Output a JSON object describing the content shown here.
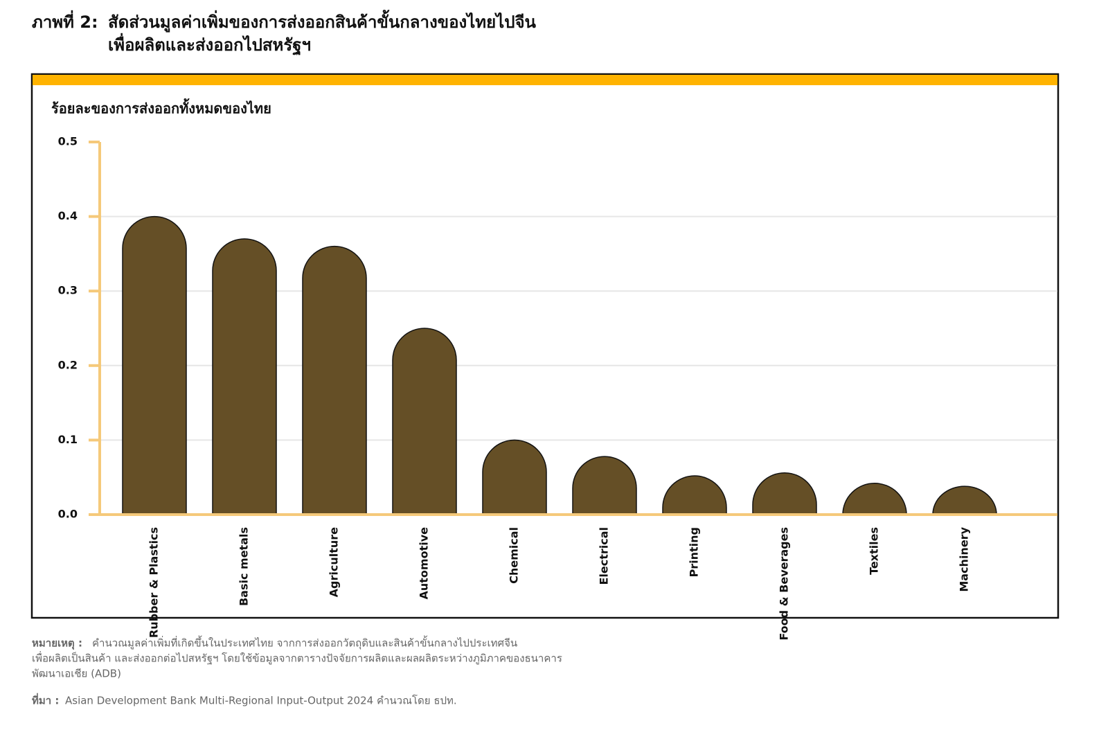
{
  "header": {
    "figure_label": "ภาพที่ 2:",
    "title_lines": [
      "สัดส่วนมูลค่าเพิ่มของการส่งออกสินค้าขั้นกลางของไทยไปจีน",
      "เพื่อผลิตและส่งออกไปสหรัฐฯ"
    ]
  },
  "chart_data": {
    "type": "bar",
    "y_label": "ร้อยละของการส่งออกทั้งหมดของไทย",
    "categories": [
      "Rubber & Plastics",
      "Basic metals",
      "Agriculture",
      "Automotive",
      "Chemical",
      "Electrical",
      "Printing",
      "Food & Beverages",
      "Textiles",
      "Machinery"
    ],
    "values": [
      0.4,
      0.37,
      0.36,
      0.25,
      0.1,
      0.078,
      0.052,
      0.056,
      0.042,
      0.038
    ],
    "color": "#654f26",
    "ylim": [
      0,
      0.5
    ],
    "yticks": [
      {
        "value": 0,
        "label": "0.0"
      },
      0.1,
      0.2,
      0.3,
      0.4,
      0.5
    ],
    "grid": true
  },
  "footer": {
    "note_label": "หมายเหตุ :",
    "note_lines": [
      "คำนวณมูลค่าเพิ่มที่เกิดขึ้นในประเทศไทย จากการส่งออกวัตถุดิบและสินค้าขั้นกลางไปประเทศจีน",
      "เพื่อผลิตเป็นสินค้า และส่งออกต่อไปสหรัฐฯ โดยใช้ข้อมูลจากตารางปัจจัยการผลิตและผลผลิตระหว่างภูมิภาคของธนาคาร",
      "พัฒนาเอเชีย (ADB)"
    ],
    "source_label": "ที่มา :",
    "source": "Asian Development Bank Multi-Regional Input-Output 2024 คำนวณโดย ธปท."
  }
}
